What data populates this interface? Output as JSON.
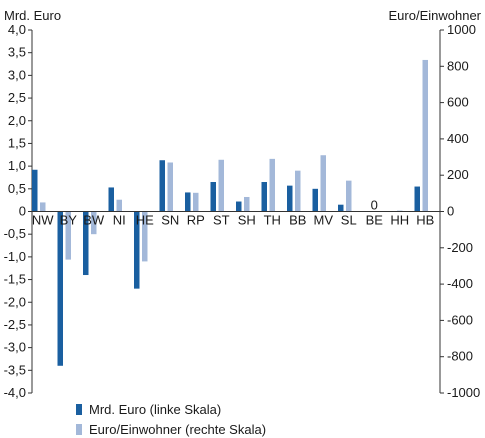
{
  "chart_data": {
    "type": "bar",
    "left_axis_label": "Mrd. Euro",
    "right_axis_label": "Euro/Einwohner",
    "left_ylim": [
      -4.0,
      4.0
    ],
    "right_ylim": [
      -1000,
      1000
    ],
    "left_ticks": [
      "4,0",
      "3,5",
      "3,0",
      "2,5",
      "2,0",
      "1,5",
      "1,0",
      "0,5",
      "0",
      "-0,5",
      "-1,0",
      "-1,5",
      "-2,0",
      "-2,5",
      "-3,0",
      "-3,5",
      "-4,0"
    ],
    "left_tick_values": [
      4.0,
      3.5,
      3.0,
      2.5,
      2.0,
      1.5,
      1.0,
      0.5,
      0,
      -0.5,
      -1.0,
      -1.5,
      -2.0,
      -2.5,
      -3.0,
      -3.5,
      -4.0
    ],
    "right_ticks": [
      "1000",
      "800",
      "600",
      "400",
      "200",
      "0",
      "-200",
      "-400",
      "-600",
      "-800",
      "-1000"
    ],
    "right_tick_values": [
      1000,
      800,
      600,
      400,
      200,
      0,
      -200,
      -400,
      -600,
      -800,
      -1000
    ],
    "categories": [
      "NW",
      "BY",
      "BW",
      "NI",
      "HE",
      "SN",
      "RP",
      "ST",
      "SH",
      "TH",
      "BB",
      "MV",
      "SL",
      "BE",
      "HH",
      "HB"
    ],
    "annotations": [
      {
        "category": "BE",
        "text": "0"
      }
    ],
    "series": [
      {
        "name": "Mrd. Euro (linke Skala)",
        "axis": "left",
        "color": "#1a5fa0",
        "values": [
          0.92,
          -3.4,
          -1.4,
          0.53,
          -1.7,
          1.13,
          0.42,
          0.65,
          0.22,
          0.65,
          0.57,
          0.5,
          0.15,
          0.0,
          0.0,
          0.55
        ]
      },
      {
        "name": "Euro/Einwohner (rechte Skala)",
        "axis": "right",
        "color": "#a3b8d9",
        "values": [
          50,
          -265,
          -125,
          65,
          -275,
          270,
          103,
          285,
          80,
          290,
          225,
          310,
          170,
          0,
          5,
          835
        ]
      }
    ],
    "legend_position": "bottom-left",
    "grid": false
  }
}
